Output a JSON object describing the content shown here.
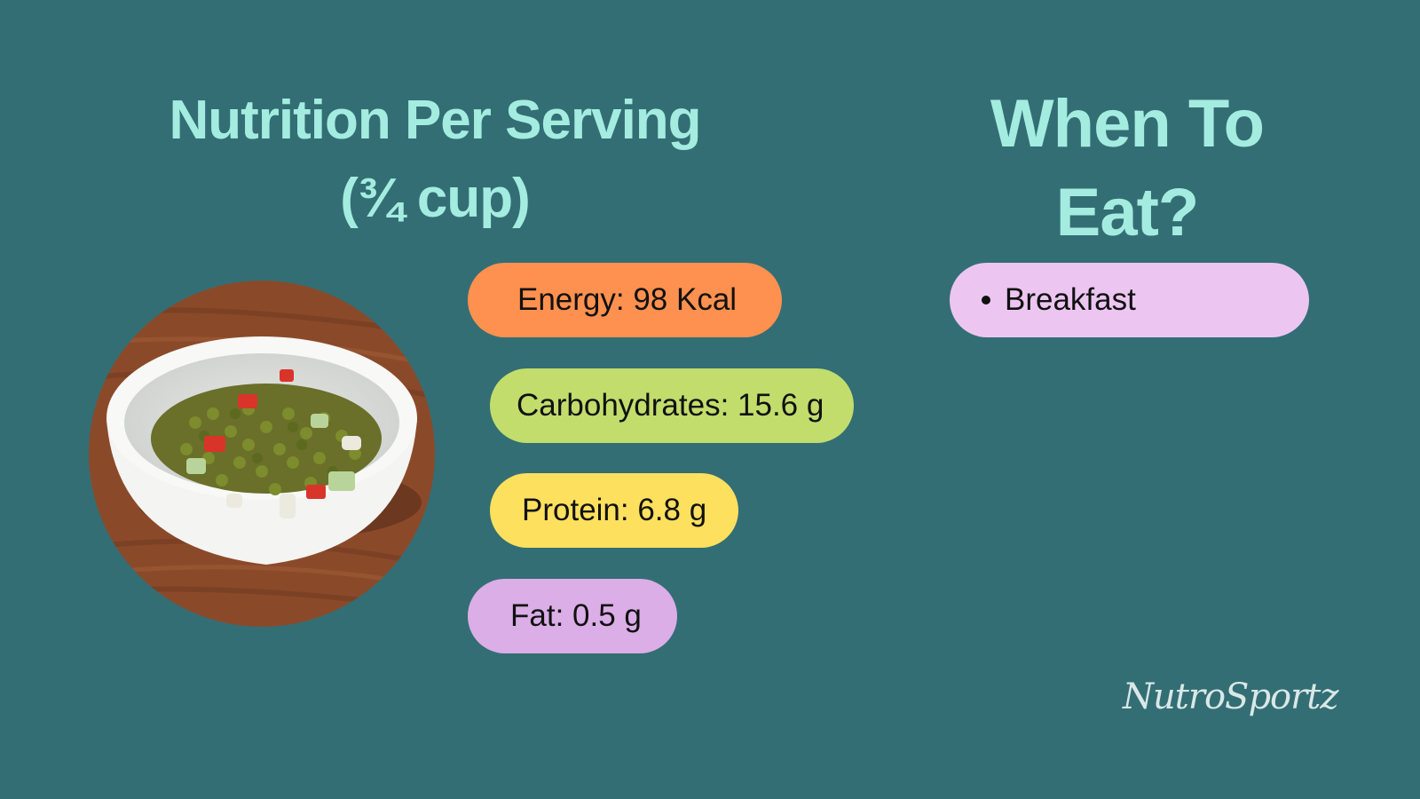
{
  "titles": {
    "nutrition_line1": "Nutrition Per Serving",
    "nutrition_line2": "(¾ cup)",
    "when": "When To Eat?"
  },
  "nutrition": {
    "energy": "Energy: 98 Kcal",
    "carbohydrates": "Carbohydrates: 15.6 g",
    "protein": "Protein: 6.8 g",
    "fat": "Fat: 0.5 g"
  },
  "when_to_eat": {
    "items": [
      "Breakfast"
    ]
  },
  "brand": "NutroSportz",
  "colors": {
    "background": "#336e75",
    "title": "#a4ece0",
    "energy_pill": "#fe914f",
    "carbohydrates_pill": "#c2dd6c",
    "protein_pill": "#fde05e",
    "fat_pill": "#dbaee7",
    "breakfast_pill": "#ecc6f1"
  }
}
